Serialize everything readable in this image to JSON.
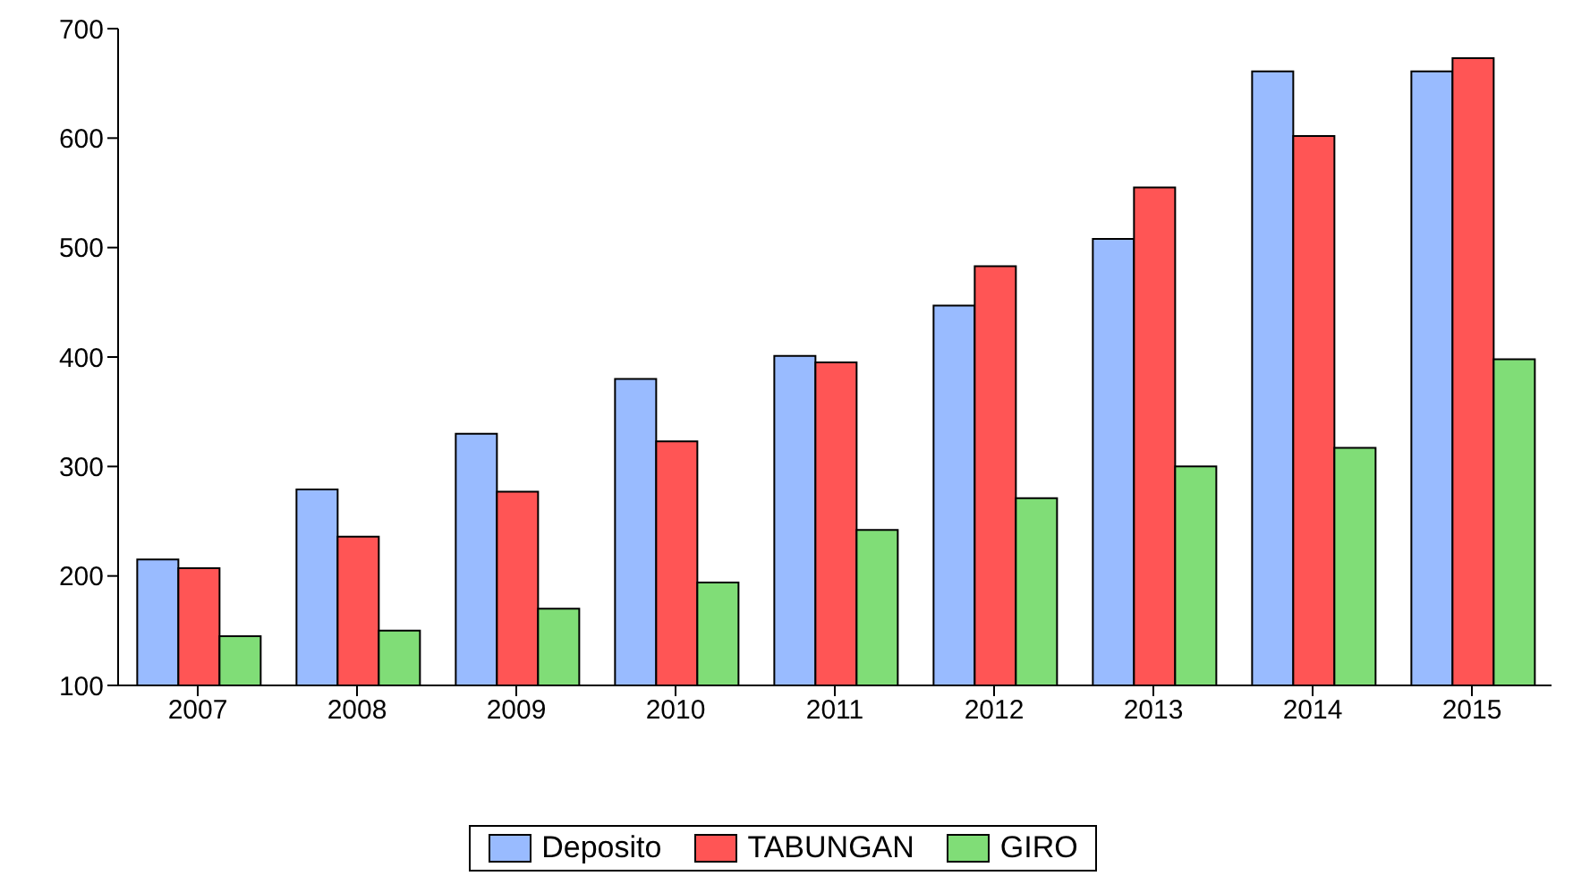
{
  "chart_data": {
    "type": "bar",
    "categories": [
      "2007",
      "2008",
      "2009",
      "2010",
      "2011",
      "2012",
      "2013",
      "2014",
      "2015"
    ],
    "series": [
      {
        "name": "Deposito",
        "color": "#99bbff",
        "values": [
          215,
          279,
          330,
          380,
          401,
          447,
          508,
          661,
          661
        ]
      },
      {
        "name": "TABUNGAN",
        "color": "#ff5555",
        "values": [
          207,
          236,
          277,
          323,
          395,
          483,
          555,
          602,
          673
        ]
      },
      {
        "name": "GIRO",
        "color": "#80dd77",
        "values": [
          145,
          150,
          170,
          194,
          242,
          271,
          300,
          317,
          398
        ]
      }
    ],
    "ylim": [
      100,
      700
    ],
    "yticks": [
      100,
      200,
      300,
      400,
      500,
      600,
      700
    ],
    "grid": false,
    "legend": "bottom"
  }
}
